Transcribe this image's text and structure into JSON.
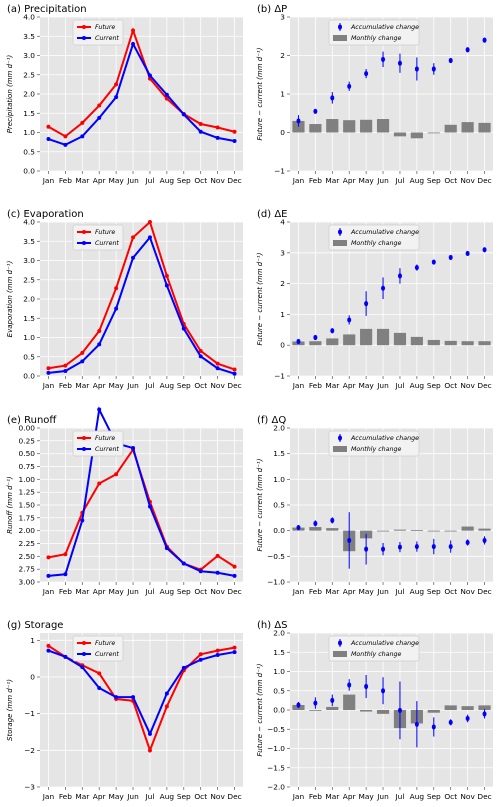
{
  "months": [
    "Jan",
    "Feb",
    "Mar",
    "Apr",
    "May",
    "Jun",
    "Jul",
    "Aug",
    "Sep",
    "Oct",
    "Nov",
    "Dec"
  ],
  "colors": {
    "future": "#ff0000",
    "current": "#0000ff",
    "accum": "#0000ff",
    "monthly": "#808080",
    "bg": "#e5e5e5",
    "grid": "#ffffff"
  },
  "chart_data": [
    {
      "id": "a",
      "type": "line",
      "title": "(a) Precipitation",
      "ylabel": "Precipitation (mm d⁻¹)",
      "ylim": [
        0,
        4
      ],
      "yticks": [
        "0.0",
        "0.5",
        "1.0",
        "1.5",
        "2.0",
        "2.5",
        "3.0",
        "3.5",
        "4.0"
      ],
      "legend": {
        "position": "top-left",
        "entries": [
          "Future",
          "Current"
        ]
      },
      "series": [
        {
          "name": "Future",
          "values": [
            1.15,
            0.9,
            1.25,
            1.7,
            2.25,
            3.65,
            2.4,
            1.88,
            1.48,
            1.22,
            1.13,
            1.02
          ]
        },
        {
          "name": "Current",
          "values": [
            0.83,
            0.68,
            0.9,
            1.38,
            1.92,
            3.3,
            2.48,
            1.98,
            1.47,
            1.02,
            0.86,
            0.78
          ]
        }
      ]
    },
    {
      "id": "b",
      "type": "bar",
      "title": "(b) ΔP",
      "ylabel": "Future − current (mm d⁻¹)",
      "ylim": [
        -1,
        3
      ],
      "yticks": [
        "−1",
        "0",
        "1",
        "2",
        "3"
      ],
      "legend": {
        "position": "top-left",
        "entries": [
          "Accumulative change",
          "Monthly change"
        ]
      },
      "monthly": [
        0.3,
        0.22,
        0.35,
        0.32,
        0.33,
        0.35,
        -0.1,
        -0.15,
        0.0,
        0.2,
        0.27,
        0.25
      ],
      "accum": [
        0.3,
        0.55,
        0.9,
        1.2,
        1.53,
        1.9,
        1.8,
        1.65,
        1.65,
        1.87,
        2.15,
        2.4
      ],
      "err": [
        0.15,
        0.05,
        0.15,
        0.12,
        0.12,
        0.2,
        0.25,
        0.3,
        0.15,
        0.05,
        0.06,
        0.05
      ]
    },
    {
      "id": "c",
      "type": "line",
      "title": "(c) Evaporation",
      "ylabel": "Evaporation (mm d⁻¹)",
      "ylim": [
        0,
        4
      ],
      "yticks": [
        "0.0",
        "0.5",
        "1.0",
        "1.5",
        "2.0",
        "2.5",
        "3.0",
        "3.5",
        "4.0"
      ],
      "legend": {
        "position": "top-left",
        "entries": [
          "Future",
          "Current"
        ]
      },
      "series": [
        {
          "name": "Future",
          "values": [
            0.2,
            0.27,
            0.6,
            1.17,
            2.28,
            3.6,
            4.0,
            2.6,
            1.35,
            0.65,
            0.32,
            0.17
          ]
        },
        {
          "name": "Current",
          "values": [
            0.08,
            0.13,
            0.38,
            0.82,
            1.75,
            3.07,
            3.6,
            2.35,
            1.23,
            0.51,
            0.2,
            0.06
          ]
        }
      ]
    },
    {
      "id": "d",
      "type": "bar",
      "title": "(d) ΔE",
      "ylabel": "Future − current (mm d⁻¹)",
      "ylim": [
        -1,
        4
      ],
      "yticks": [
        "−1",
        "0",
        "1",
        "2",
        "3",
        "4"
      ],
      "legend": {
        "position": "top-left",
        "entries": [
          "Accumulative change",
          "Monthly change"
        ]
      },
      "monthly": [
        0.12,
        0.13,
        0.22,
        0.35,
        0.53,
        0.53,
        0.4,
        0.27,
        0.17,
        0.14,
        0.13,
        0.13
      ],
      "accum": [
        0.12,
        0.25,
        0.47,
        0.82,
        1.35,
        1.85,
        2.25,
        2.52,
        2.7,
        2.85,
        2.98,
        3.1
      ],
      "err": [
        0.05,
        0.05,
        0.08,
        0.15,
        0.4,
        0.35,
        0.25,
        0.1,
        0.04,
        0.03,
        0.03,
        0.03
      ]
    },
    {
      "id": "e",
      "type": "line",
      "title": "(e) Runoff",
      "ylabel": "Runoff (mm d⁻¹)",
      "ylim": [
        0,
        1
      ],
      "yticks": [
        "3.00",
        "2.75",
        "2.50",
        "2.25",
        "2.00",
        "1.75",
        "1.50",
        "1.25",
        "1.00",
        "0.75",
        "0.50",
        "0.25",
        "0.00"
      ],
      "ytick_values": [
        0.0,
        0.083,
        0.167,
        0.25,
        0.333,
        0.417,
        0.5,
        0.583,
        0.667,
        0.75,
        0.833,
        0.917,
        1.0
      ],
      "legend": {
        "position": "top-left",
        "entries": [
          "Future",
          "Current"
        ]
      },
      "series": [
        {
          "name": "Future",
          "values": [
            0.16,
            0.18,
            0.45,
            0.64,
            0.7,
            0.86,
            0.52,
            0.23,
            0.12,
            0.08,
            0.17,
            0.1
          ]
        },
        {
          "name": "Current",
          "values": [
            0.04,
            0.05,
            0.4,
            1.12,
            0.9,
            0.87,
            0.49,
            0.22,
            0.12,
            0.07,
            0.06,
            0.04
          ]
        }
      ]
    },
    {
      "id": "f",
      "type": "bar",
      "title": "(f) ΔQ",
      "ylabel": "Future − current (mm d⁻¹)",
      "ylim": [
        -1,
        2
      ],
      "yticks": [
        "−1.0",
        "−0.5",
        "0.0",
        "0.5",
        "1.0",
        "1.5",
        "2.0"
      ],
      "legend": {
        "position": "top-left",
        "entries": [
          "Accumulative change",
          "Monthly change"
        ]
      },
      "monthly": [
        0.06,
        0.07,
        0.05,
        -0.4,
        -0.15,
        0.0,
        0.02,
        0.01,
        0.0,
        0.0,
        0.08,
        0.04
      ],
      "accum": [
        0.06,
        0.14,
        0.2,
        -0.19,
        -0.36,
        -0.36,
        -0.32,
        -0.31,
        -0.31,
        -0.31,
        -0.23,
        -0.19
      ],
      "err": [
        0.05,
        0.06,
        0.06,
        0.55,
        0.3,
        0.12,
        0.1,
        0.1,
        0.15,
        0.12,
        0.06,
        0.08
      ]
    },
    {
      "id": "g",
      "type": "line",
      "title": "(g) Storage",
      "ylabel": "Storage (mm d⁻¹)",
      "ylim": [
        -3,
        1.2
      ],
      "yticks": [
        "−3",
        "−2",
        "−1",
        "0",
        "1"
      ],
      "legend": {
        "position": "top-left",
        "entries": [
          "Future",
          "Current"
        ]
      },
      "series": [
        {
          "name": "Future",
          "values": [
            0.85,
            0.55,
            0.32,
            0.1,
            -0.6,
            -0.65,
            -2.0,
            -0.8,
            0.18,
            0.62,
            0.72,
            0.8
          ]
        },
        {
          "name": "Current",
          "values": [
            0.72,
            0.55,
            0.27,
            -0.3,
            -0.55,
            -0.55,
            -1.55,
            -0.45,
            0.25,
            0.47,
            0.6,
            0.68
          ]
        }
      ]
    },
    {
      "id": "h",
      "type": "bar",
      "title": "(h) ΔS",
      "ylabel": "Future − current (mm d⁻¹)",
      "ylim": [
        -2,
        2
      ],
      "yticks": [
        "−2.0",
        "−1.5",
        "−1.0",
        "−0.5",
        "0.0",
        "0.5",
        "1.0",
        "1.5",
        "2.0"
      ],
      "legend": {
        "position": "top-left",
        "entries": [
          "Accumulative change",
          "Monthly change"
        ]
      },
      "monthly": [
        0.13,
        0.0,
        0.08,
        0.4,
        -0.04,
        -0.1,
        -0.47,
        -0.35,
        -0.07,
        0.12,
        0.1,
        0.12
      ],
      "accum": [
        0.13,
        0.18,
        0.25,
        0.65,
        0.61,
        0.5,
        -0.01,
        -0.37,
        -0.44,
        -0.32,
        -0.22,
        -0.1
      ],
      "err": [
        0.08,
        0.15,
        0.15,
        0.15,
        0.3,
        0.35,
        0.75,
        0.6,
        0.25,
        0.08,
        0.1,
        0.12
      ]
    }
  ]
}
